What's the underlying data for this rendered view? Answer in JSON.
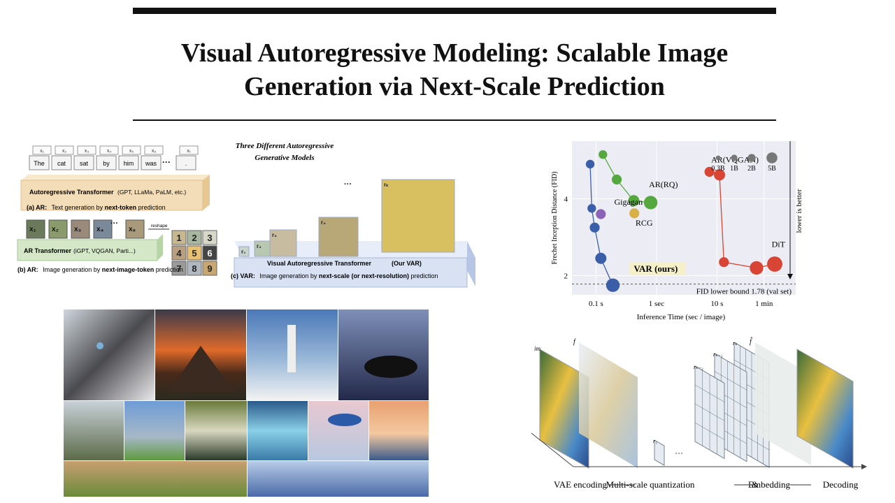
{
  "paper": {
    "title_line1": "Visual Autoregressive Modeling:  Scalable Image",
    "title_line2": "Generation via Next-Scale Prediction"
  },
  "fig1": {
    "heading_line1": "Three  Different  Autoregressive",
    "heading_line2": "Generative  Models",
    "tokens": [
      "The",
      "cat",
      "sat",
      "by",
      "him",
      "was",
      "."
    ],
    "token_indices": [
      "x₁",
      "x₂",
      "x₃",
      "x₄",
      "x₅",
      "x₆",
      "xₜ"
    ],
    "ar_bar_label": "Autoregressive Transformer",
    "ar_bar_models": "(GPT, LLaMa, PaLM, etc.)",
    "caption_a_prefix": "(a) AR:",
    "caption_a_text": "Text generation by ",
    "caption_a_bold": "next-token",
    "caption_a_suffix": " prediction",
    "img_tokens": [
      "x₁",
      "x₂",
      "x₃",
      "x₄",
      "x₉"
    ],
    "reshape_label": "reshape",
    "grid_numbers": [
      "1",
      "2",
      "3",
      "4",
      "5",
      "6",
      "7",
      "8",
      "9"
    ],
    "ar2_bar_label": "AR Transformer",
    "ar2_bar_models": "(iGPT, VQGAN, Parti...)",
    "caption_b_prefix": "(b) AR:",
    "caption_b_text": "Image generation by ",
    "caption_b_bold": "next-image-token",
    "caption_b_suffix": " prediction",
    "scales": [
      "r₁",
      "r₂",
      "r₃",
      "r₄",
      "rₖ"
    ],
    "var_bar_label": "Visual Autoregressive Transformer",
    "var_bar_models": "(Our VAR)",
    "caption_c_prefix": "(c) VAR:",
    "caption_c_text": "Image generation by ",
    "caption_c_bold": "next-scale (or next-resolution)",
    "caption_c_suffix": " prediction"
  },
  "chart_data": {
    "type": "scatter",
    "xlabel": "Inference Time (sec / image)",
    "ylabel": "Frechet Inception Distance (FID)",
    "x_scale": "log",
    "x_ticks": [
      {
        "v": 0.1,
        "label": "0.1 s"
      },
      {
        "v": 1,
        "label": "1 sec"
      },
      {
        "v": 10,
        "label": "10 s"
      },
      {
        "v": 60,
        "label": "1 min"
      }
    ],
    "y_ticks": [
      {
        "v": 2,
        "label": "2"
      },
      {
        "v": 4,
        "label": "4"
      }
    ],
    "xlim": [
      0.04,
      200
    ],
    "ylim": [
      1.5,
      5.5
    ],
    "grid": true,
    "side_label": "lower is better",
    "lower_bound": {
      "value": 1.78,
      "label": "FID lower bound 1.78 (val set)"
    },
    "size_legend": [
      "0.3B",
      "1B",
      "2B",
      "5B"
    ],
    "series": [
      {
        "name": "VAR (ours)",
        "color": "#3a5fa8",
        "points": [
          [
            0.08,
            4.9
          ],
          [
            0.085,
            3.75
          ],
          [
            0.095,
            3.25
          ],
          [
            0.12,
            2.45
          ],
          [
            0.19,
            1.75
          ]
        ],
        "sizes": [
          0.3,
          0.3,
          0.6,
          1,
          2
        ]
      },
      {
        "name": "AR(RQ)",
        "color": "#55a83e",
        "points": [
          [
            0.13,
            5.15
          ],
          [
            0.22,
            4.5
          ],
          [
            0.42,
            3.95
          ],
          [
            0.8,
            3.9
          ]
        ],
        "sizes": [
          0.3,
          0.6,
          1,
          2
        ]
      },
      {
        "name": "Gigagan",
        "color": "#8a63b8",
        "points": [
          [
            0.12,
            3.6
          ]
        ],
        "sizes": [
          0.6
        ]
      },
      {
        "name": "RCG",
        "color": "#d8b045",
        "points": [
          [
            0.43,
            3.62
          ]
        ],
        "sizes": [
          0.6
        ]
      },
      {
        "name": "AR(VQGAN)",
        "color": "#d84535",
        "points": [
          [
            7.5,
            4.7
          ],
          [
            11,
            4.62
          ],
          [
            13,
            2.35
          ],
          [
            45,
            2.2
          ],
          [
            90,
            2.3
          ]
        ],
        "sizes": [
          0.6,
          1,
          0.6,
          2,
          3
        ]
      }
    ],
    "annotations": [
      {
        "text": "AR(VQGAN)",
        "x": 8,
        "y": 4.95
      },
      {
        "text": "AR(RQ)",
        "x": 0.75,
        "y": 4.3
      },
      {
        "text": "Gigagan",
        "x": 0.2,
        "y": 3.85
      },
      {
        "text": "RCG",
        "x": 0.45,
        "y": 3.3
      },
      {
        "text": "DiT",
        "x": 80,
        "y": 2.75
      },
      {
        "text": "VAR (ours)",
        "x": 0.42,
        "y": 2.1
      }
    ]
  },
  "fig3": {
    "labels": [
      "VAE encoding",
      "Multi-scale quantization",
      "&",
      "Embedding",
      "Decoding"
    ],
    "im_label": "im",
    "f_label": "f",
    "r_labels": [
      "rₖ",
      "rₖ₋₁",
      "rₖ₋₂",
      "r₁"
    ],
    "f_hat_label": "f̂",
    "dots": "···"
  },
  "colors": {
    "ar_bar": "#f3ddb8",
    "ar2_bar": "#d4e8c8",
    "var_bar": "#d8e2f3",
    "chart_bg": "#ececf4"
  }
}
